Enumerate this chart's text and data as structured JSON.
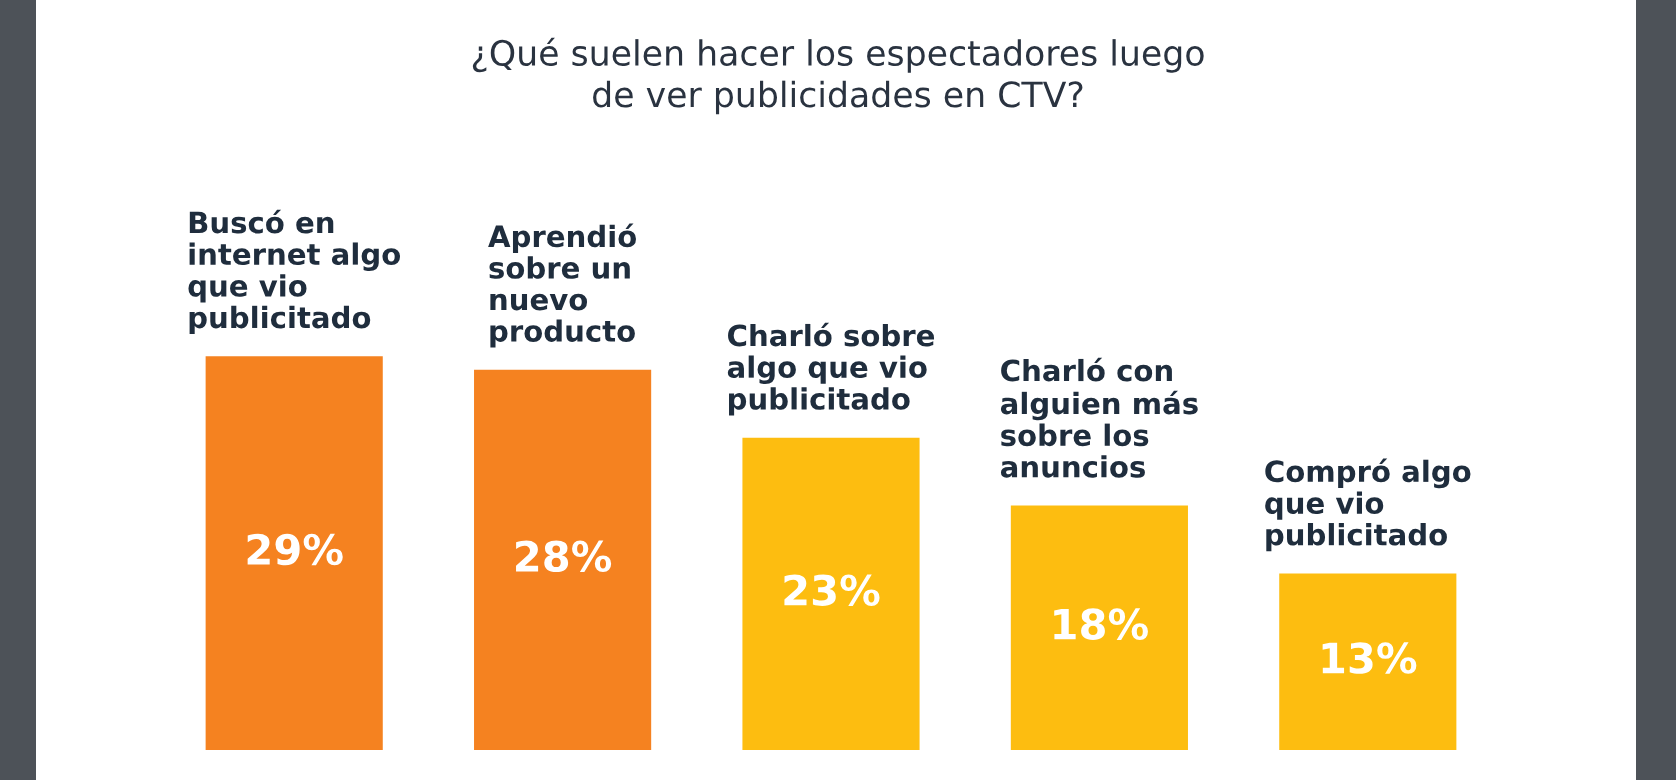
{
  "chart_data": {
    "type": "bar",
    "title": "¿Qué suelen hacer los espectadores luego\nde ver publicidades en CTV?",
    "categories": [
      "Buscó en\ninternet algo\nque vio\npublicitado",
      "Aprendió\nsobre un\nnuevo\nproducto",
      "Charló sobre\nalgo que vio\npublicitado",
      "Charló con\nalguien más\nsobre los\nanuncios",
      "Compró algo\nque vio\npublicitado"
    ],
    "values": [
      29,
      28,
      23,
      18,
      13
    ],
    "colors": [
      "#f58220",
      "#f58220",
      "#fdbd10",
      "#fdbd10",
      "#fdbd10"
    ],
    "value_labels": [
      "29%",
      "28%",
      "23%",
      "18%",
      "13%"
    ]
  }
}
